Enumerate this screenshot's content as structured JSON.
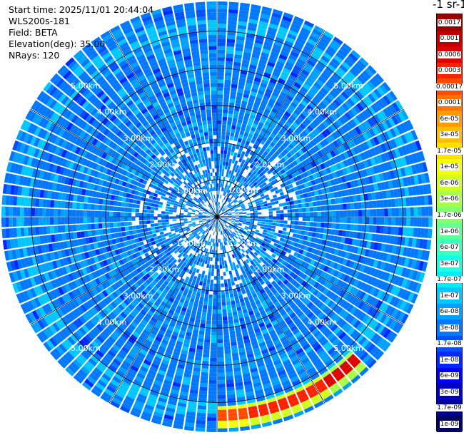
{
  "info": {
    "start_time": "Start time: 2025/11/01 20:44:04",
    "instrument": "WLS200s-181",
    "field": "Field: BETA",
    "elevation": "Elevation(deg): 35.00",
    "nrays": "NRays: 120"
  },
  "colorbar": {
    "title": "-1 sr-1",
    "levels": [
      {
        "label": "0.0017",
        "color": "#9a0000"
      },
      {
        "label": "0.001",
        "color": "#c00000"
      },
      {
        "label": "0.0006",
        "color": "#e00000"
      },
      {
        "label": "0.0003",
        "color": "#ff2000"
      },
      {
        "label": "0.00017",
        "color": "#ff4a00"
      },
      {
        "label": "0.0001",
        "color": "#ff7400"
      },
      {
        "label": "6e-05",
        "color": "#ff9a00"
      },
      {
        "label": "3e-05",
        "color": "#ffbe00"
      },
      {
        "label": "1.7e-05",
        "color": "#ffe000"
      },
      {
        "label": "1e-05",
        "color": "#f4ff00"
      },
      {
        "label": "6e-06",
        "color": "#d0ff20"
      },
      {
        "label": "3e-06",
        "color": "#a8ff48"
      },
      {
        "label": "1.7e-06",
        "color": "#84ff70"
      },
      {
        "label": "1e-06",
        "color": "#60ff98"
      },
      {
        "label": "6e-07",
        "color": "#3cffbe"
      },
      {
        "label": "3e-07",
        "color": "#18ffe4"
      },
      {
        "label": "1.7e-07",
        "color": "#00ecff"
      },
      {
        "label": "1e-07",
        "color": "#00c8ff"
      },
      {
        "label": "6e-08",
        "color": "#00a0ff"
      },
      {
        "label": "3e-08",
        "color": "#0078ff"
      },
      {
        "label": "1.7e-08",
        "color": "#0050ff"
      },
      {
        "label": "1e-08",
        "color": "#0028ff"
      },
      {
        "label": "6e-09",
        "color": "#0000f0"
      },
      {
        "label": "3e-09",
        "color": "#0000c0"
      },
      {
        "label": "1.7e-09",
        "color": "#000090"
      },
      {
        "label": "1e-09",
        "color": "#000060"
      }
    ]
  },
  "chart_data": {
    "type": "heatmap",
    "projection": "polar (PPI)",
    "field": "BETA",
    "elevation_deg": 35.0,
    "n_rays": 120,
    "range_rings_km": [
      1.0,
      2.0,
      3.0,
      4.0,
      5.0
    ],
    "range_ring_labels": [
      "1.00km",
      "2.00km",
      "3.00km",
      "4.00km",
      "5.00km"
    ],
    "max_range_km": 5.8,
    "spoke_angles_deg": [
      0,
      30,
      60,
      90,
      120,
      150
    ],
    "dominant_value": "3e-08",
    "hotspot": {
      "azimuth_range_deg": [
        136,
        181
      ],
      "range_km": [
        5.2,
        5.55
      ],
      "peak_value": "0.0006"
    }
  }
}
